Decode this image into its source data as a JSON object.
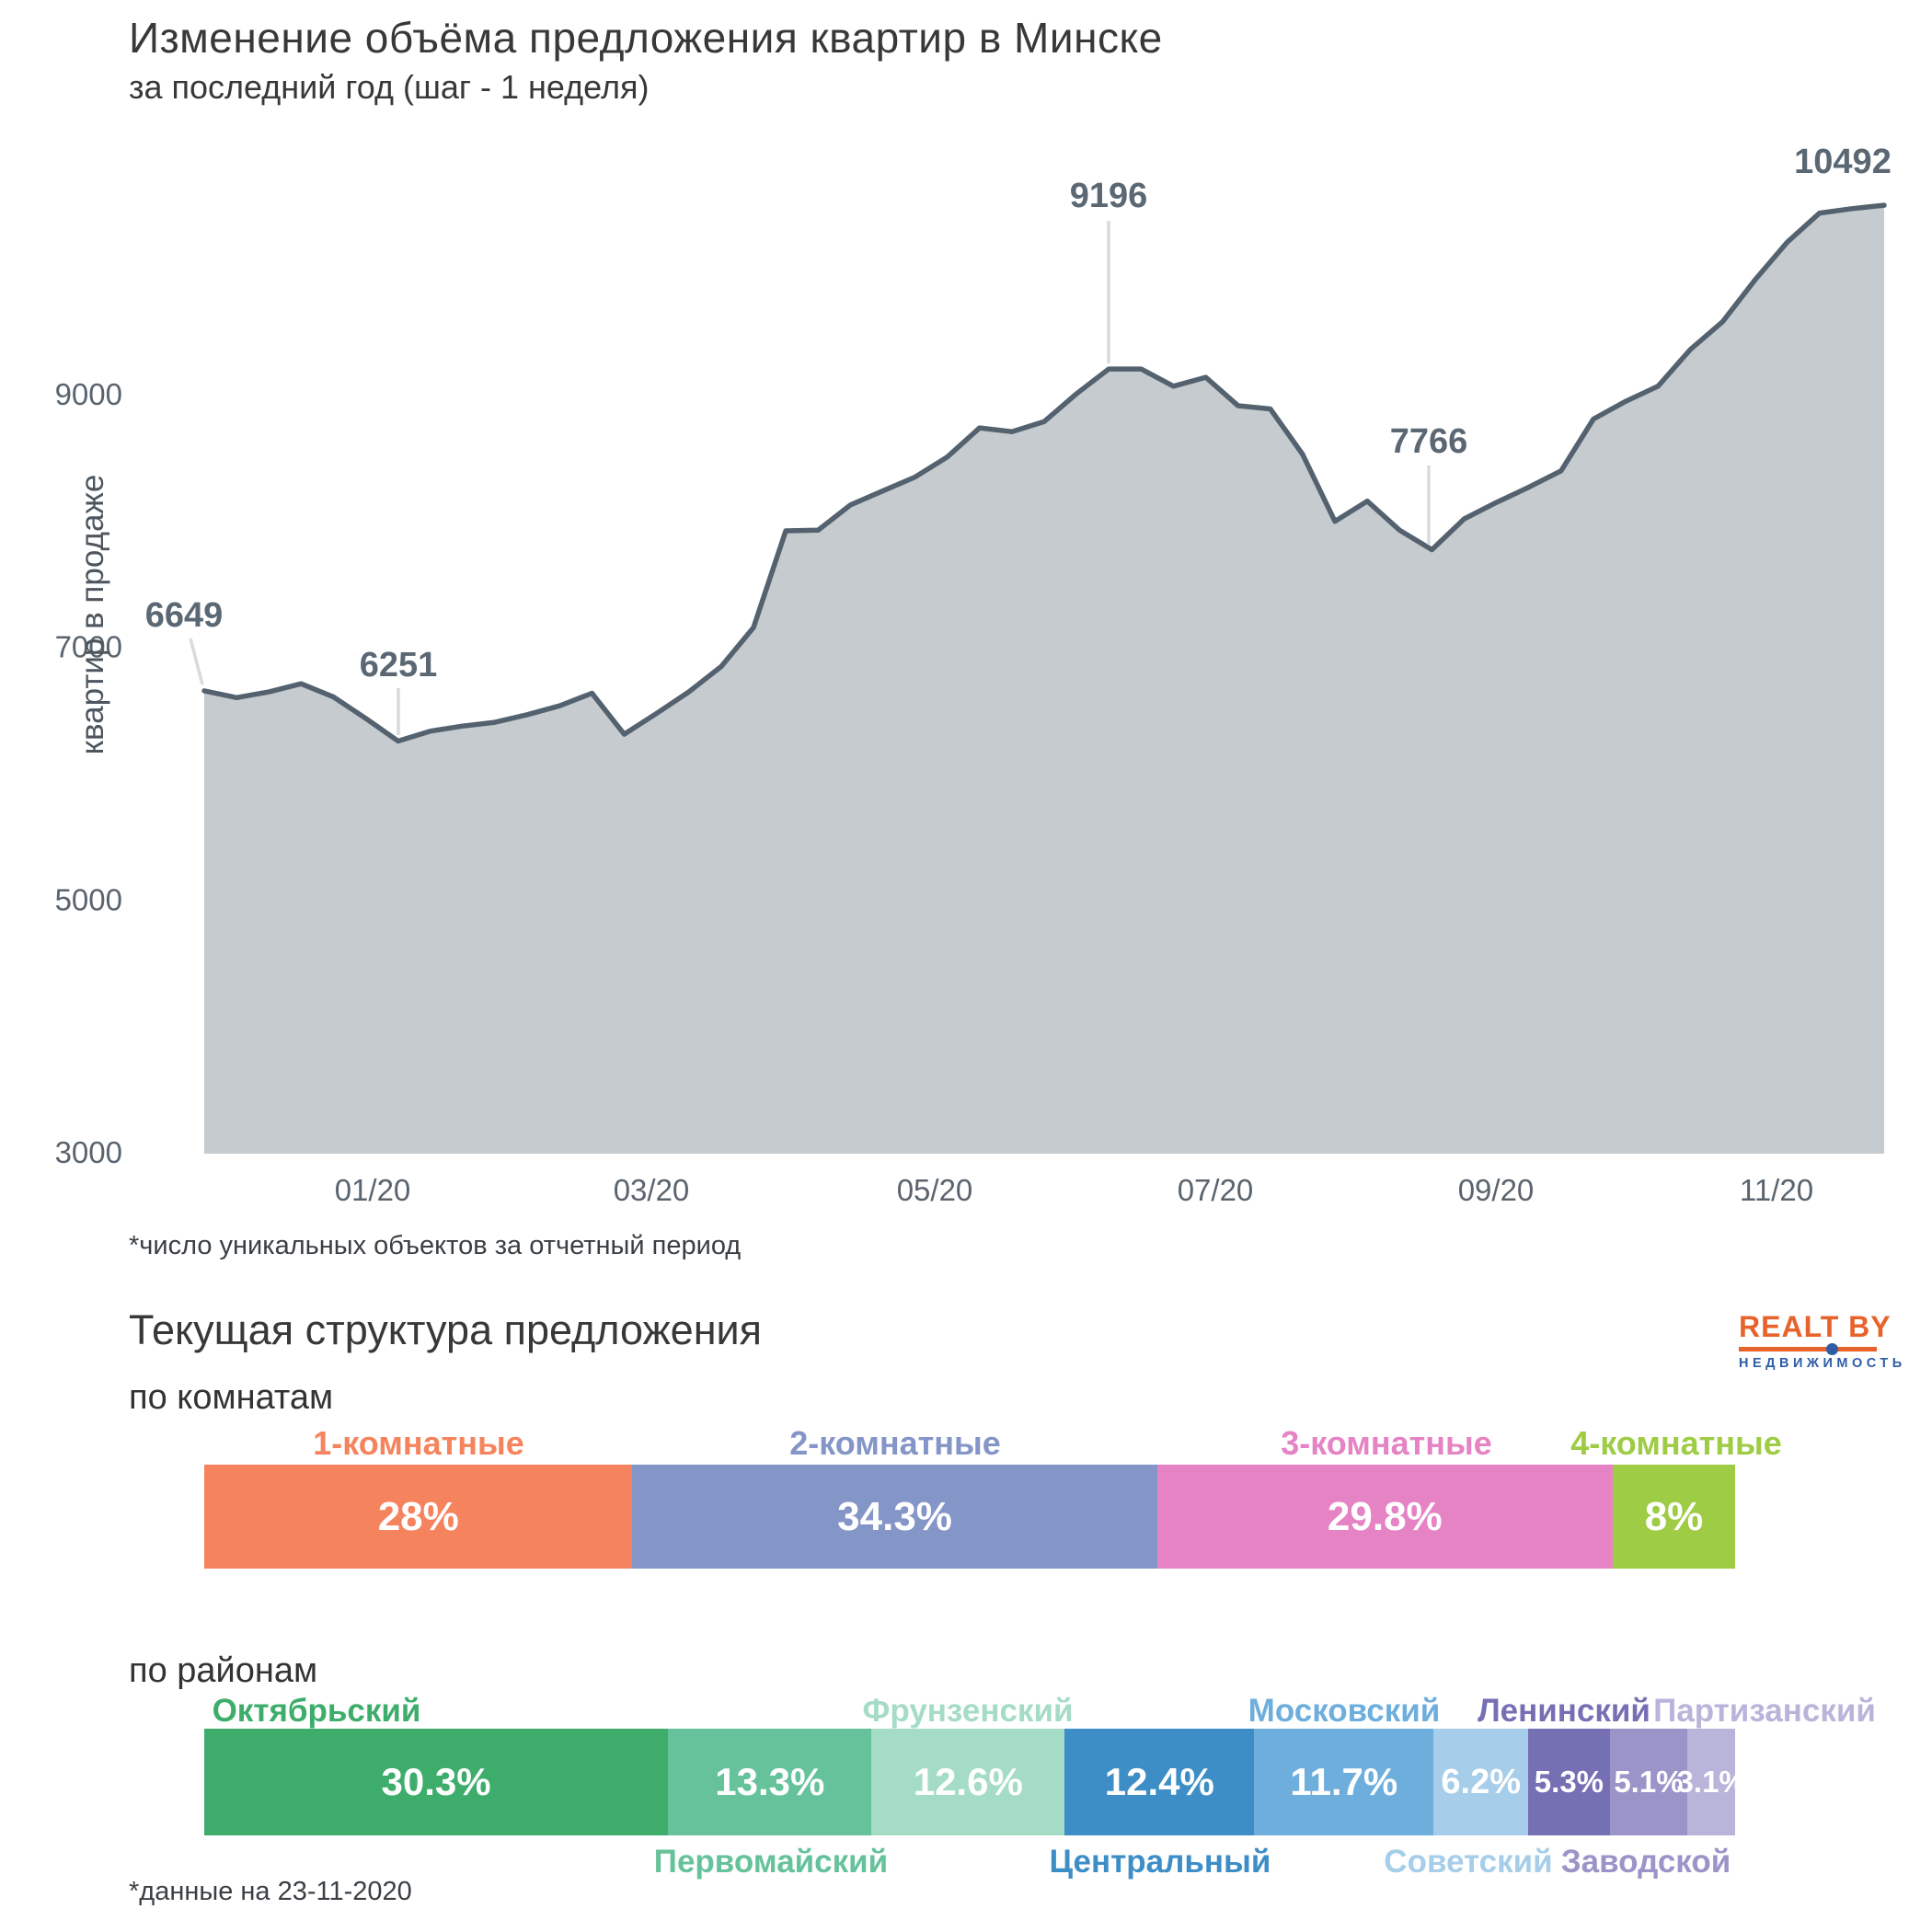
{
  "top_chart": {
    "title": "Изменение объёма предложения квартир в Минске",
    "subtitle": "за последний год (шаг - 1 неделя)",
    "y_axis_title": "квартир в продаже",
    "footnote": "*число уникальных объектов за отчетный период",
    "colors": {
      "line": "#54626f",
      "fill": "#c6cbcf",
      "annotation_text": "#5b6873",
      "axis_text": "#5a646e",
      "leader": "#d8dbdd"
    }
  },
  "structure_section": {
    "title": "Текущая структура предложения",
    "footnote": "*данные на 23-11-2020",
    "rooms_label": "по комнатам",
    "districts_label": "по районам",
    "logo": {
      "line1": "REALT BY",
      "line2": "НЕДВИЖИМОСТЬ"
    }
  },
  "chart_data": [
    {
      "type": "area",
      "title": "Изменение объёма предложения квартир в Минске",
      "subtitle": "за последний год (шаг - 1 неделя)",
      "ylabel": "квартир в продаже",
      "ylim": [
        3000,
        11000
      ],
      "grid": false,
      "legend": false,
      "x_step": "1 week",
      "x_tick_labels": [
        "01/20",
        "03/20",
        "05/20",
        "07/20",
        "09/20",
        "11/20"
      ],
      "y_tick_labels": [
        "9000",
        "7000",
        "5000",
        "3000"
      ],
      "y_tick_values": [
        9000,
        7000,
        5000,
        3000
      ],
      "values": [
        6649,
        6595,
        6640,
        6705,
        6600,
        6430,
        6251,
        6330,
        6370,
        6400,
        6460,
        6530,
        6630,
        6305,
        6470,
        6640,
        6840,
        7150,
        7915,
        7920,
        8120,
        8230,
        8340,
        8500,
        8730,
        8700,
        8780,
        9000,
        9196,
        9196,
        9060,
        9130,
        8905,
        8880,
        8520,
        7990,
        8150,
        7920,
        7766,
        8010,
        8140,
        8260,
        8390,
        8800,
        8940,
        9060,
        9350,
        9570,
        9900,
        10200,
        10430,
        10465,
        10492
      ],
      "annotations": [
        {
          "label": "6649",
          "index": 0
        },
        {
          "label": "6251",
          "index": 6
        },
        {
          "label": "9196",
          "index": 28
        },
        {
          "label": "7766",
          "index": 38
        },
        {
          "label": "10492",
          "index": 52
        }
      ]
    },
    {
      "type": "bar",
      "title": "по комнатам",
      "stacked_percent": true,
      "segments": [
        {
          "name": "1-комнатные",
          "value": 28,
          "label": "28%",
          "color": "#f5845e",
          "label_side": "top"
        },
        {
          "name": "2-комнатные",
          "value": 34.3,
          "label": "34.3%",
          "color": "#8495c7",
          "label_side": "top"
        },
        {
          "name": "3-комнатные",
          "value": 29.8,
          "label": "29.8%",
          "color": "#e583c5",
          "label_side": "top"
        },
        {
          "name": "4-комнатные",
          "value": 8,
          "label": "8%",
          "color": "#9ecc44",
          "label_side": "top"
        }
      ]
    },
    {
      "type": "bar",
      "title": "по районам",
      "stacked_percent": true,
      "segments": [
        {
          "name": "Октябрьский",
          "value": 30.3,
          "label": "30.3%",
          "color": "#3ead6b",
          "label_side": "top"
        },
        {
          "name": "Первомайский",
          "value": 13.3,
          "label": "13.3%",
          "color": "#65c29a",
          "label_side": "bottom"
        },
        {
          "name": "Фрунзенский",
          "value": 12.6,
          "label": "12.6%",
          "color": "#a5dcc5",
          "label_side": "top"
        },
        {
          "name": "Центральный",
          "value": 12.4,
          "label": "12.4%",
          "color": "#3d8ec6",
          "label_side": "bottom"
        },
        {
          "name": "Московский",
          "value": 11.7,
          "label": "11.7%",
          "color": "#6eaedc",
          "label_side": "top"
        },
        {
          "name": "Советский",
          "value": 6.2,
          "label": "6.2%",
          "color": "#a6cde9",
          "label_side": "bottom"
        },
        {
          "name": "Ленинский",
          "value": 5.3,
          "label": "5.3%",
          "color": "#756fb4",
          "label_side": "top"
        },
        {
          "name": "Заводской",
          "value": 5.1,
          "label": "5.1%",
          "color": "#9a94c8",
          "label_side": "bottom"
        },
        {
          "name": "Партизанский",
          "value": 3.1,
          "label": "3.1%",
          "color": "#b9b4d9",
          "label_side": "top"
        }
      ]
    }
  ]
}
